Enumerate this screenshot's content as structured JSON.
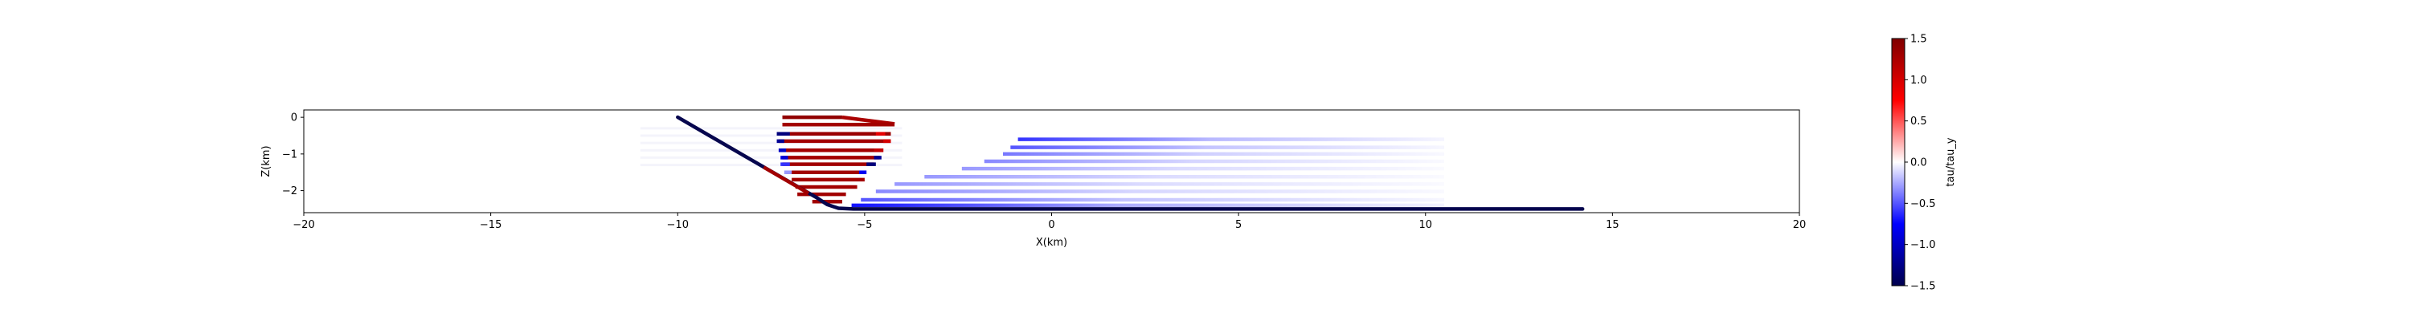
{
  "chart_data": [
    {
      "type": "scatter",
      "xlabel": "X(km)",
      "ylabel": "Z(km)",
      "xlim": [
        -20,
        20
      ],
      "ylim": [
        -2.6,
        0.2
      ],
      "xticks": [
        -20,
        -15,
        -10,
        -5,
        0,
        5,
        10,
        15,
        20
      ],
      "yticks": [
        0,
        -1,
        -2
      ],
      "xtick_labels": [
        "−20",
        "−15",
        "−10",
        "−5",
        "0",
        "5",
        "10",
        "15",
        "20"
      ],
      "ytick_labels": [
        "0",
        "−1",
        "−2"
      ],
      "colormap": "seismic",
      "clim": [
        -1.5,
        1.5
      ],
      "fault": {
        "color": "#06064e",
        "points": [
          [
            -10.0,
            0.0
          ],
          [
            -8.0,
            -1.18
          ],
          [
            -6.3,
            -2.18
          ],
          [
            -6.0,
            -2.38
          ],
          [
            -5.7,
            -2.48
          ],
          [
            -5.3,
            -2.5
          ],
          [
            14.2,
            -2.5
          ]
        ],
        "colored_segment": {
          "points": [
            [
              -7.7,
              -1.36
            ],
            [
              -6.5,
              -2.07
            ]
          ],
          "value": 1.3
        }
      },
      "layers": [
        {
          "z": 0.0,
          "x_start": -7.2,
          "x_end": -5.6,
          "value": 1.4,
          "end_fade": false,
          "wedge": {
            "start": -5.6,
            "end": -4.2,
            "value": 1.25
          },
          "bands": []
        },
        {
          "z": -0.2,
          "x_start": -7.2,
          "x_end": -4.2,
          "value": 1.3,
          "end_fade": false,
          "wedge": null,
          "bands": []
        },
        {
          "z": -0.45,
          "x_start": -7.3,
          "x_end": -4.3,
          "value": 1.35,
          "end_fade": false,
          "wedge": null,
          "bands": [
            {
              "x0": -7.35,
              "x1": -7.0,
              "value": -1.3
            },
            {
              "x0": -4.7,
              "x1": -4.45,
              "value": 0.9
            }
          ]
        },
        {
          "z": -0.6,
          "x_start": -0.9,
          "x_end": 10.5,
          "value": -0.6,
          "end_fade": true,
          "wedge": null,
          "bands": []
        },
        {
          "z": -0.65,
          "x_start": -7.3,
          "x_end": -4.3,
          "value": 1.3,
          "end_fade": false,
          "wedge": null,
          "bands": [
            {
              "x0": -7.35,
              "x1": -7.15,
              "value": -1.2
            },
            {
              "x0": -4.5,
              "x1": -4.3,
              "value": 1.0
            }
          ]
        },
        {
          "z": -0.82,
          "x_start": -1.1,
          "x_end": 10.5,
          "value": -0.5,
          "end_fade": true,
          "wedge": null,
          "bands": []
        },
        {
          "z": -0.9,
          "x_start": -7.25,
          "x_end": -4.5,
          "value": 1.3,
          "end_fade": false,
          "wedge": null,
          "bands": [
            {
              "x0": -7.3,
              "x1": -7.1,
              "value": -1.0
            },
            {
              "x0": -4.75,
              "x1": -4.5,
              "value": 1.1
            }
          ]
        },
        {
          "z": -1.0,
          "x_start": -1.3,
          "x_end": 10.5,
          "value": -0.4,
          "end_fade": true,
          "wedge": null,
          "bands": []
        },
        {
          "z": -1.1,
          "x_start": -7.2,
          "x_end": -4.6,
          "value": 1.3,
          "end_fade": false,
          "wedge": null,
          "bands": [
            {
              "x0": -7.25,
              "x1": -7.05,
              "value": -0.9
            },
            {
              "x0": -4.75,
              "x1": -4.55,
              "value": -1.2
            }
          ]
        },
        {
          "z": -1.2,
          "x_start": -1.8,
          "x_end": 10.5,
          "value": -0.35,
          "end_fade": true,
          "wedge": null,
          "bands": []
        },
        {
          "z": -1.28,
          "x_start": -7.2,
          "x_end": -4.75,
          "value": 1.3,
          "end_fade": false,
          "wedge": null,
          "bands": [
            {
              "x0": -7.25,
              "x1": -7.0,
              "value": -0.6
            },
            {
              "x0": -4.95,
              "x1": -4.7,
              "value": -1.3
            }
          ]
        },
        {
          "z": -1.4,
          "x_start": -2.4,
          "x_end": 10.5,
          "value": -0.3,
          "end_fade": true,
          "wedge": null,
          "bands": []
        },
        {
          "z": -1.5,
          "x_start": -7.1,
          "x_end": -5.0,
          "value": 1.3,
          "end_fade": false,
          "wedge": null,
          "bands": [
            {
              "x0": -7.15,
              "x1": -6.95,
              "value": -0.3
            },
            {
              "x0": -5.15,
              "x1": -4.95,
              "value": -0.8
            }
          ]
        },
        {
          "z": -1.62,
          "x_start": -3.4,
          "x_end": 10.5,
          "value": -0.3,
          "end_fade": true,
          "wedge": null,
          "bands": []
        },
        {
          "z": -1.7,
          "x_start": -6.95,
          "x_end": -5.0,
          "value": 1.3,
          "end_fade": false,
          "wedge": null,
          "bands": []
        },
        {
          "z": -1.82,
          "x_start": -4.2,
          "x_end": 10.5,
          "value": -0.3,
          "end_fade": true,
          "wedge": null,
          "bands": []
        },
        {
          "z": -1.9,
          "x_start": -6.85,
          "x_end": -5.2,
          "value": 1.3,
          "end_fade": false,
          "wedge": null,
          "bands": []
        },
        {
          "z": -2.02,
          "x_start": -4.7,
          "x_end": 10.5,
          "value": -0.35,
          "end_fade": true,
          "wedge": null,
          "bands": []
        },
        {
          "z": -2.1,
          "x_start": -6.8,
          "x_end": -5.5,
          "value": 1.3,
          "end_fade": false,
          "wedge": null,
          "bands": []
        },
        {
          "z": -2.25,
          "x_start": -5.1,
          "x_end": 10.5,
          "value": -0.5,
          "end_fade": true,
          "wedge": null,
          "bands": []
        },
        {
          "z": -2.3,
          "x_start": -6.4,
          "x_end": -5.6,
          "value": 1.3,
          "end_fade": false,
          "wedge": null,
          "bands": []
        },
        {
          "z": -2.4,
          "x_start": -5.35,
          "x_end": 10.5,
          "value": -0.7,
          "end_fade": true,
          "wedge": null,
          "bands": []
        }
      ],
      "faint_ghost_region": {
        "x_start": -11.0,
        "x_end": -4.0,
        "z_top": -0.3,
        "z_bottom": -1.3
      },
      "grid": false,
      "legend": "none"
    },
    {
      "type": "colorbar",
      "colormap": "seismic",
      "vmin": -1.5,
      "vmax": 1.5,
      "ticks": [
        1.5,
        1.0,
        0.5,
        0.0,
        -0.5,
        -1.0,
        -1.5
      ],
      "tick_labels": [
        "1.5",
        "1.0",
        "0.5",
        "0.0",
        "−0.5",
        "−1.0",
        "−1.5"
      ],
      "label": "tau/tau_y"
    }
  ]
}
